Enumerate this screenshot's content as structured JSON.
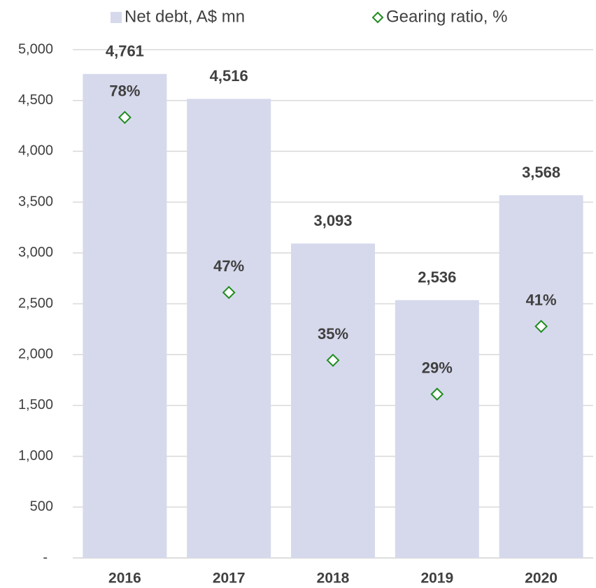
{
  "chart_data": {
    "type": "bar",
    "categories": [
      "2016",
      "2017",
      "2018",
      "2019",
      "2020"
    ],
    "series": [
      {
        "name": "Net debt, A$ mn",
        "type": "bar",
        "color": "#d6d9ec",
        "values": [
          4761,
          4516,
          3093,
          2536,
          3568
        ],
        "value_labels": [
          "4,761",
          "4,516",
          "3,093",
          "2,536",
          "3,568"
        ]
      },
      {
        "name": "Gearing ratio, %",
        "type": "scatter",
        "axis": "y2",
        "color": "#1f8c1f",
        "values": [
          78,
          47,
          35,
          29,
          41
        ],
        "value_labels": [
          "78%",
          "47%",
          "35%",
          "29%",
          "41%"
        ]
      }
    ],
    "ylim": [
      0,
      5000
    ],
    "yticks": [
      {
        "value": 0,
        "label": "-"
      },
      500,
      {
        "value": 1000,
        "label": "1,000"
      },
      {
        "value": 1500,
        "label": "1,500"
      },
      {
        "value": 2000,
        "label": "2,000"
      },
      {
        "value": 2500,
        "label": "2,500"
      },
      {
        "value": 3000,
        "label": "3,000"
      },
      {
        "value": 3500,
        "label": "3,500"
      },
      {
        "value": 4000,
        "label": "4,000"
      },
      {
        "value": 4500,
        "label": "4,500"
      },
      {
        "value": 5000,
        "label": "5,000"
      }
    ],
    "y2lim": [
      0,
      90
    ],
    "grid": true,
    "legend": "top"
  }
}
